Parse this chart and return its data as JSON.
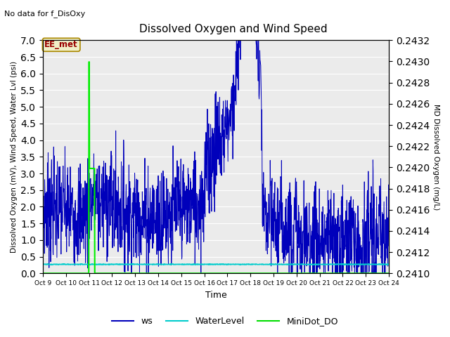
{
  "title": "Dissolved Oxygen and Wind Speed",
  "top_left_text": "No data for f_DisOxy",
  "ylabel_left": "Dissolved Oxygen (mV), Wind Speed, Water Lvl (psi)",
  "ylabel_right": "MD Dissolved Oxygen (mg/L)",
  "xlabel": "Time",
  "ylim_left": [
    0.0,
    7.0
  ],
  "ylim_right": [
    0.241,
    0.2432
  ],
  "bg_color": "#ebebeb",
  "annotation_box": "EE_met",
  "x_tick_labels": [
    "Oct 9",
    "Oct 10",
    "Oct 11",
    "Oct 12",
    "Oct 13",
    "Oct 14",
    "Oct 15",
    "Oct 16",
    "Oct 17",
    "Oct 18",
    "Oct 19",
    "Oct 20",
    "Oct 21",
    "Oct 22",
    "Oct 23",
    "Oct 24"
  ],
  "legend_entries": [
    "ws",
    "WaterLevel",
    "MiniDot_DO"
  ],
  "legend_colors": [
    "#0000bb",
    "#00cccc",
    "#00dd00"
  ],
  "ws_color": "#0000bb",
  "wl_color": "#00cccc",
  "do_color": "#00ee00",
  "ws_linewidth": 0.7,
  "wl_linewidth": 1.2,
  "do_linewidth": 1.5,
  "figsize": [
    6.4,
    4.8
  ],
  "dpi": 100
}
